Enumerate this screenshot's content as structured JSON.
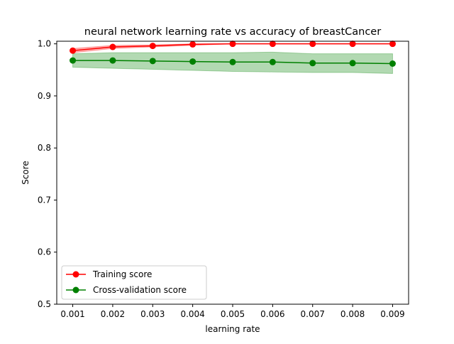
{
  "chart_data": {
    "type": "line",
    "title": "neural network learning rate vs accuracy of breastCancer",
    "xlabel": "learning rate",
    "ylabel": "Score",
    "x": [
      0.001,
      0.002,
      0.003,
      0.004,
      0.005,
      0.006,
      0.007,
      0.008,
      0.009
    ],
    "x_tick_labels": [
      "0.001",
      "0.002",
      "0.003",
      "0.004",
      "0.005",
      "0.006",
      "0.007",
      "0.008",
      "0.009"
    ],
    "xlim": [
      0.0006,
      0.0094
    ],
    "ylim": [
      0.5,
      1.005
    ],
    "y_ticks": [
      0.5,
      0.6,
      0.7,
      0.8,
      0.9,
      1.0
    ],
    "y_tick_labels": [
      "0.5",
      "0.6",
      "0.7",
      "0.8",
      "0.9",
      "1.0"
    ],
    "grid": false,
    "legend_position": "lower left",
    "series": [
      {
        "name": "Training score",
        "color": "#ff0000",
        "values": [
          0.987,
          0.994,
          0.996,
          0.999,
          1.0,
          1.0,
          1.0,
          1.0,
          1.0
        ],
        "band_lower": [
          0.983,
          0.991,
          0.994,
          0.997,
          1.0,
          1.0,
          1.0,
          1.0,
          1.0
        ],
        "band_upper": [
          0.991,
          0.997,
          0.998,
          1.0,
          1.0,
          1.0,
          1.0,
          1.0,
          1.0
        ],
        "band_color": "#ff0000",
        "band_opacity": 0.3
      },
      {
        "name": "Cross-validation score",
        "color": "#008000",
        "values": [
          0.968,
          0.968,
          0.967,
          0.966,
          0.965,
          0.965,
          0.963,
          0.963,
          0.962
        ],
        "band_lower": [
          0.955,
          0.953,
          0.951,
          0.949,
          0.947,
          0.946,
          0.945,
          0.945,
          0.943
        ],
        "band_upper": [
          0.981,
          0.983,
          0.983,
          0.983,
          0.983,
          0.984,
          0.981,
          0.981,
          0.981
        ],
        "band_color": "#008000",
        "band_opacity": 0.3
      }
    ]
  }
}
